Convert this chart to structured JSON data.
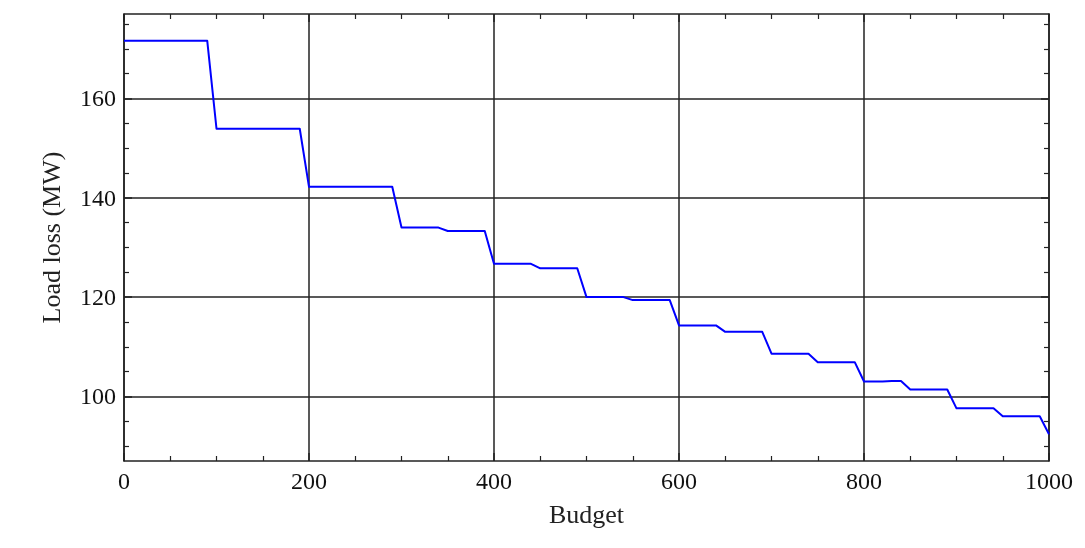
{
  "chart_data": {
    "type": "line",
    "xlabel": "Budget",
    "ylabel": "Load loss (MW)",
    "x": [
      0,
      90,
      100,
      190,
      200,
      290,
      300,
      340,
      350,
      390,
      400,
      440,
      450,
      490,
      500,
      540,
      550,
      590,
      600,
      640,
      650,
      690,
      700,
      740,
      750,
      790,
      800,
      820,
      830,
      840,
      850,
      890,
      900,
      940,
      950,
      990,
      1000
    ],
    "series": [
      {
        "color": "#0000ff",
        "values": [
          171.6,
          171.6,
          153.9,
          153.9,
          142.2,
          142.2,
          134.0,
          134.0,
          133.3,
          133.3,
          126.7,
          126.7,
          125.8,
          125.8,
          120.0,
          120.0,
          119.4,
          119.4,
          114.3,
          114.3,
          113.0,
          113.0,
          108.6,
          108.6,
          106.9,
          106.9,
          103.0,
          103.0,
          103.1,
          103.1,
          101.4,
          101.4,
          97.6,
          97.6,
          96.0,
          96.0,
          92.4
        ]
      }
    ],
    "xlim": [
      0,
      1000
    ],
    "xticks": [
      0,
      200,
      400,
      600,
      800,
      1000
    ],
    "ylim": [
      87,
      177
    ],
    "yticks": [
      100,
      120,
      140,
      160
    ],
    "grid": true,
    "marker": "none",
    "line_style": "solid"
  }
}
